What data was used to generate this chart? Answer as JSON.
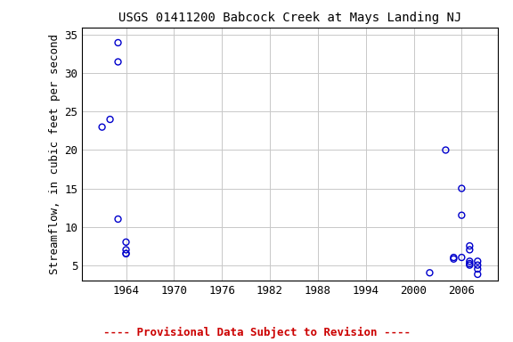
{
  "title": "USGS 01411200 Babcock Creek at Mays Landing NJ",
  "ylabel": "Streamflow, in cubic feet per second",
  "x_data": [
    1961,
    1962,
    1963,
    1963,
    1963,
    1964,
    1964,
    1964,
    1964,
    2002,
    2004,
    2005,
    2005,
    2006,
    2006,
    2006,
    2007,
    2007,
    2007,
    2007,
    2007,
    2008,
    2008,
    2008,
    2008
  ],
  "y_data": [
    23,
    24,
    34,
    31.5,
    11,
    6.5,
    7,
    8,
    6.5,
    4,
    20,
    6,
    5.8,
    15,
    11.5,
    6,
    7.5,
    7,
    5.2,
    5,
    5.5,
    4.5,
    5,
    3.8,
    5.5
  ],
  "marker_color": "#0000CC",
  "marker_size": 5,
  "marker_style": "o",
  "xlim": [
    1958.5,
    2010.5
  ],
  "ylim": [
    3,
    36
  ],
  "xticks": [
    1964,
    1970,
    1976,
    1982,
    1988,
    1994,
    2000,
    2006
  ],
  "yticks": [
    5,
    10,
    15,
    20,
    25,
    30,
    35
  ],
  "grid_color": "#c8c8c8",
  "bg_color": "#ffffff",
  "provisional_text": "---- Provisional Data Subject to Revision ----",
  "provisional_color": "#cc0000",
  "title_fontsize": 10,
  "label_fontsize": 9,
  "tick_fontsize": 9,
  "provisional_fontsize": 9
}
